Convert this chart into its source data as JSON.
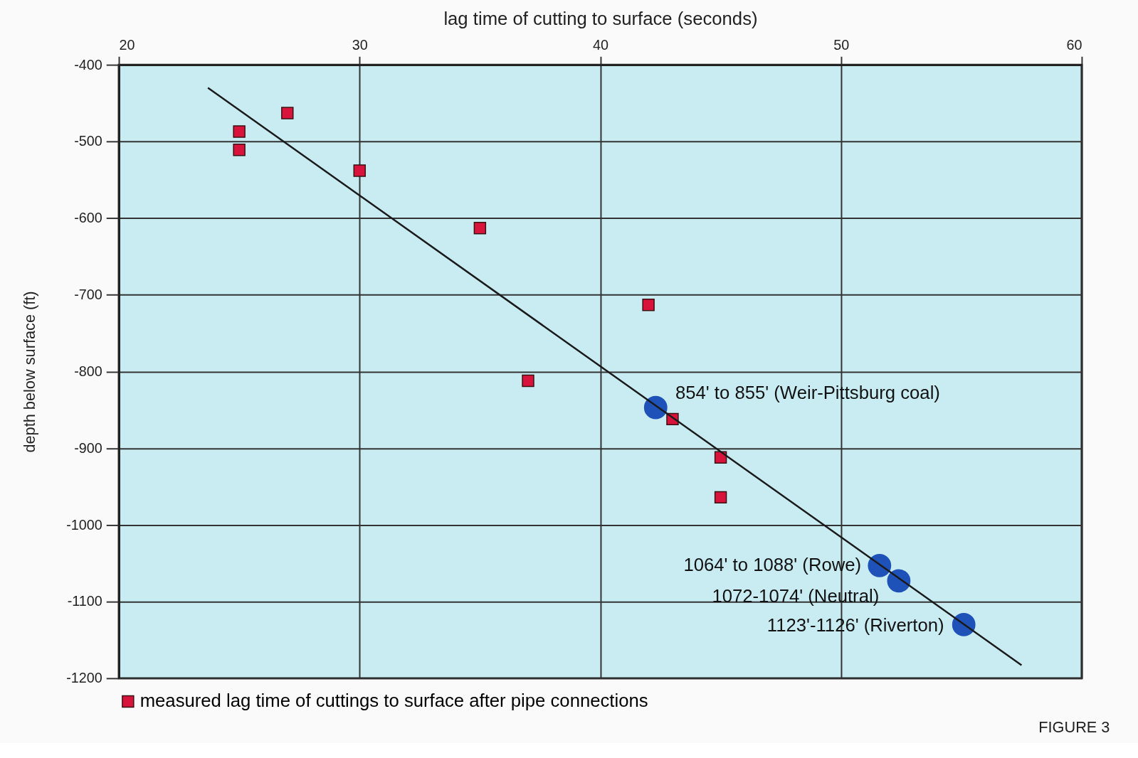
{
  "chart_data": {
    "type": "scatter",
    "xlabel": "lag time of cutting to surface (seconds)",
    "ylabel": "depth below surface (ft)",
    "xlim": [
      20,
      60
    ],
    "xticks": [
      20,
      30,
      40,
      50,
      60
    ],
    "ylim": [
      -1200,
      -400
    ],
    "yticks": [
      -1200,
      -1100,
      -1000,
      -900,
      -800,
      -700,
      -600,
      -500,
      -400
    ],
    "grid": true,
    "legend": "bottom",
    "series": [
      {
        "name": "measured lag time of cuttings to surface after pipe connections",
        "marker": "square",
        "color": "#d8143c",
        "x": [
          25,
          25,
          27,
          30,
          35,
          37,
          42,
          43,
          45,
          45
        ],
        "values": [
          -487,
          -511,
          -463,
          -538,
          -613,
          -812,
          -713,
          -862,
          -912,
          -964
        ]
      },
      {
        "marker": "circle",
        "color": "#1f52b8",
        "x": [
          42.3,
          51.6,
          52.4,
          55.1
        ],
        "values": [
          -847,
          -1053,
          -1073,
          -1130
        ]
      },
      {
        "type": "line",
        "line_style": "solid",
        "color": "#1a1a1a",
        "x": [
          23.7,
          57.5
        ],
        "values": [
          -430,
          -1183
        ]
      }
    ],
    "annotations": [
      {
        "text": "854' to 855' (Weir-Pittsburg coal)",
        "x": 42.3,
        "y": -847
      },
      {
        "text": "1064' to 1088' (Rowe)",
        "x": 51.6,
        "y": -1053
      },
      {
        "text": "1072-1074' (Neutral)",
        "x": 52.4,
        "y": -1073
      },
      {
        "text": "1123'-1126' (Riverton)",
        "x": 55.1,
        "y": -1130
      },
      "FIGURE 3"
    ]
  }
}
